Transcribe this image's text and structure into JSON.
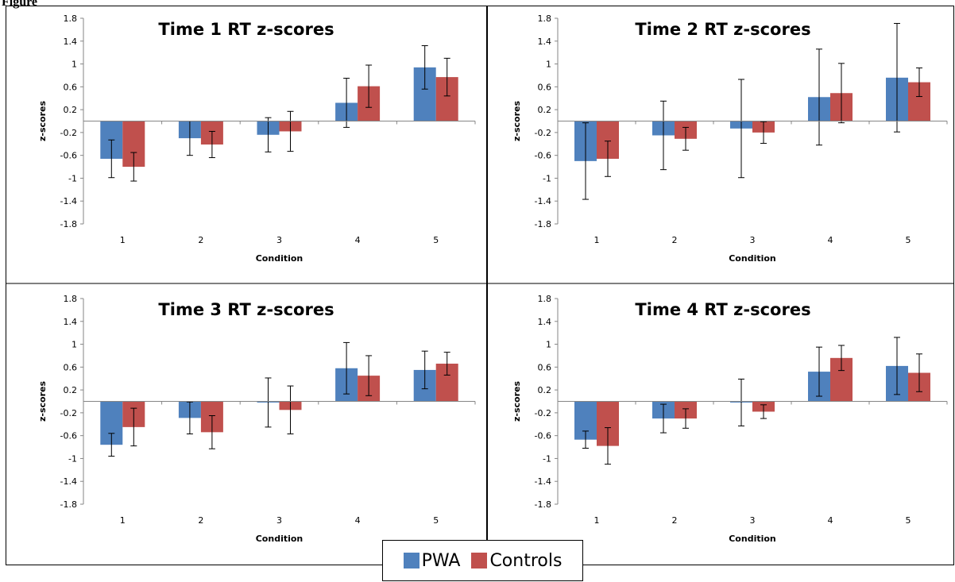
{
  "figure_label": "Figure",
  "legend": [
    {
      "name": "PWA",
      "color": "#4F81BD"
    },
    {
      "name": "Controls",
      "color": "#C0504D"
    }
  ],
  "chart_data": [
    {
      "type": "bar",
      "title": "Time 1 RT z-scores",
      "xlabel": "Condition",
      "ylabel": "z-scores",
      "categories": [
        "1",
        "2",
        "3",
        "4",
        "5"
      ],
      "ylim": [
        -1.8,
        1.8
      ],
      "yticks": [
        "1.8",
        "1.4",
        "1",
        "0.6",
        "0.2",
        "-0.2",
        "-0.6",
        "-1",
        "-1.4",
        "-1.8"
      ],
      "series": [
        {
          "name": "PWA",
          "values": [
            -0.66,
            -0.3,
            -0.24,
            0.32,
            0.94
          ],
          "errors": [
            0.33,
            0.3,
            0.3,
            0.43,
            0.38
          ]
        },
        {
          "name": "Controls",
          "values": [
            -0.8,
            -0.41,
            -0.18,
            0.61,
            0.77
          ],
          "errors": [
            0.25,
            0.23,
            0.35,
            0.37,
            0.33
          ]
        }
      ]
    },
    {
      "type": "bar",
      "title": "Time 2 RT z-scores",
      "xlabel": "Condition",
      "ylabel": "z-scores",
      "categories": [
        "1",
        "2",
        "3",
        "4",
        "5"
      ],
      "ylim": [
        -1.8,
        1.8
      ],
      "yticks": [
        "1.8",
        "1.4",
        "1",
        "0.6",
        "0.2",
        "-0.2",
        "-0.6",
        "-1",
        "-1.4",
        "-1.8"
      ],
      "series": [
        {
          "name": "PWA",
          "values": [
            -0.7,
            -0.25,
            -0.13,
            0.42,
            0.76
          ],
          "errors": [
            0.67,
            0.6,
            0.86,
            0.84,
            0.95
          ]
        },
        {
          "name": "Controls",
          "values": [
            -0.66,
            -0.31,
            -0.2,
            0.49,
            0.68
          ],
          "errors": [
            0.31,
            0.2,
            0.19,
            0.52,
            0.25
          ]
        }
      ]
    },
    {
      "type": "bar",
      "title": "Time 3 RT z-scores",
      "xlabel": "Condition",
      "ylabel": "z-scores",
      "categories": [
        "1",
        "2",
        "3",
        "4",
        "5"
      ],
      "ylim": [
        -1.8,
        1.8
      ],
      "yticks": [
        "1.8",
        "1.4",
        "1",
        "0.6",
        "0.2",
        "-0.2",
        "-0.6",
        "-1",
        "-1.4",
        "-1.8"
      ],
      "series": [
        {
          "name": "PWA",
          "values": [
            -0.76,
            -0.29,
            -0.02,
            0.58,
            0.55
          ],
          "errors": [
            0.2,
            0.28,
            0.43,
            0.45,
            0.33
          ]
        },
        {
          "name": "Controls",
          "values": [
            -0.45,
            -0.54,
            -0.15,
            0.45,
            0.66
          ],
          "errors": [
            0.33,
            0.29,
            0.42,
            0.35,
            0.2
          ]
        }
      ]
    },
    {
      "type": "bar",
      "title": "Time 4 RT z-scores",
      "xlabel": "Condition",
      "ylabel": "z-scores",
      "categories": [
        "1",
        "2",
        "3",
        "4",
        "5"
      ],
      "ylim": [
        -1.8,
        1.8
      ],
      "yticks": [
        "1.8",
        "1.4",
        "1",
        "0.6",
        "0.2",
        "-0.2",
        "-0.6",
        "-1",
        "-1.4",
        "-1.8"
      ],
      "series": [
        {
          "name": "PWA",
          "values": [
            -0.67,
            -0.3,
            -0.02,
            0.52,
            0.62
          ],
          "errors": [
            0.15,
            0.25,
            0.41,
            0.43,
            0.5
          ]
        },
        {
          "name": "Controls",
          "values": [
            -0.78,
            -0.3,
            -0.18,
            0.76,
            0.5
          ],
          "errors": [
            0.32,
            0.17,
            0.12,
            0.22,
            0.33
          ]
        }
      ]
    }
  ]
}
